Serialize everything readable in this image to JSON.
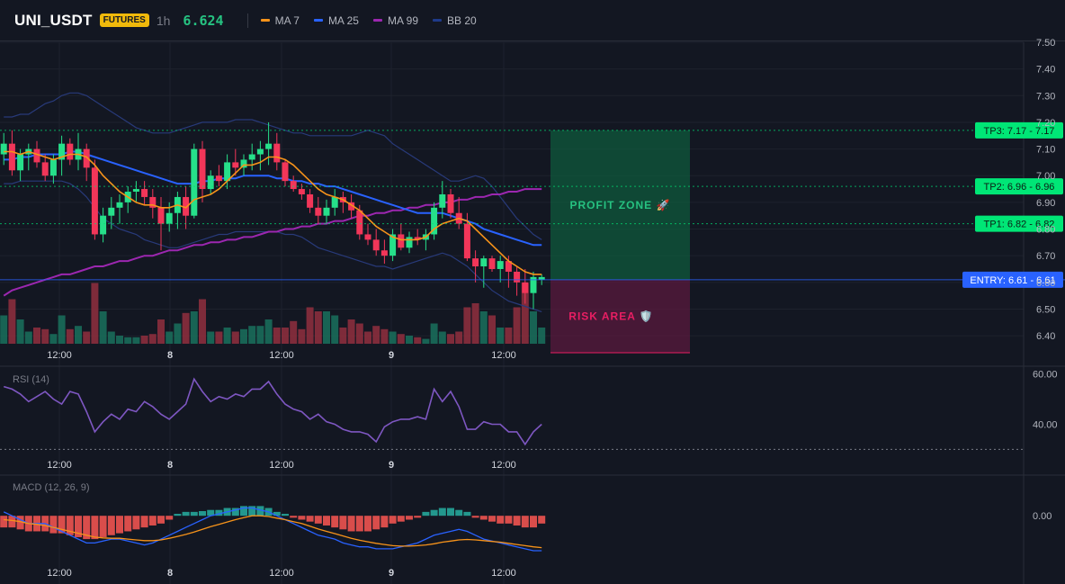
{
  "header": {
    "symbol": "UNI_USDT",
    "market_badge": "FUTURES",
    "timeframe": "1h",
    "last_price": "6.624",
    "legend": [
      {
        "label": "MA 7",
        "color": "#f7931a"
      },
      {
        "label": "MA 25",
        "color": "#2962ff"
      },
      {
        "label": "MA 99",
        "color": "#9c27b0"
      },
      {
        "label": "BB 20",
        "color": "#1e3a8a"
      }
    ]
  },
  "price_axis": {
    "ticks": [
      "7.50",
      "7.40",
      "7.30",
      "7.20",
      "7.10",
      "7.00",
      "6.90",
      "6.80",
      "6.70",
      "6.60",
      "6.50",
      "6.40"
    ],
    "range": [
      6.37,
      7.5
    ]
  },
  "levels": [
    {
      "name": "tp3",
      "label": "TP3: 7.17",
      "value_label": "7.17",
      "value": 7.17,
      "color": "#00e676"
    },
    {
      "name": "tp2",
      "label": "TP2: 6.96",
      "value_label": "6.96",
      "value": 6.96,
      "color": "#00e676"
    },
    {
      "name": "tp1",
      "label": "TP1: 6.82",
      "value_label": "6.82",
      "value": 6.82,
      "color": "#00e676"
    },
    {
      "name": "entry",
      "label": "ENTRY: 6.61",
      "value_label": "6.61",
      "value": 6.61,
      "color": "#2962ff"
    }
  ],
  "zones": {
    "profit_label": "PROFIT ZONE 🚀",
    "risk_label": "RISK AREA 🛡️",
    "profit_top": 7.17,
    "risk_bottom": 6.37
  },
  "time_axis": [
    "12:00",
    "8",
    "12:00",
    "9",
    "12:00"
  ],
  "rsi": {
    "label": "RSI (14)",
    "ticks": [
      "60.00",
      "40.00"
    ],
    "range": [
      28,
      62
    ],
    "values": [
      55,
      54,
      52,
      49,
      51,
      53,
      50,
      48,
      53,
      52,
      45,
      37,
      41,
      44,
      42,
      46,
      45,
      49,
      47,
      44,
      42,
      45,
      48,
      58,
      53,
      49,
      51,
      50,
      52,
      51,
      54,
      54,
      57,
      52,
      48,
      46,
      45,
      42,
      44,
      41,
      40,
      38,
      37,
      37,
      36,
      33,
      39,
      41,
      42,
      42,
      43,
      42,
      54,
      49,
      53,
      47,
      38,
      38,
      41,
      40,
      40,
      37,
      37,
      32,
      37,
      40
    ]
  },
  "macd": {
    "label": "MACD (12, 26, 9)",
    "ticks": [
      "0.00"
    ],
    "range": [
      -0.12,
      0.1
    ],
    "hist": [
      -0.03,
      -0.03,
      -0.035,
      -0.04,
      -0.04,
      -0.04,
      -0.045,
      -0.045,
      -0.05,
      -0.055,
      -0.06,
      -0.06,
      -0.055,
      -0.05,
      -0.045,
      -0.04,
      -0.035,
      -0.03,
      -0.025,
      -0.02,
      -0.01,
      0.005,
      0.01,
      0.01,
      0.012,
      0.015,
      0.015,
      0.02,
      0.02,
      0.025,
      0.025,
      0.025,
      0.02,
      0.01,
      0.005,
      -0.005,
      -0.01,
      -0.015,
      -0.02,
      -0.025,
      -0.03,
      -0.035,
      -0.04,
      -0.04,
      -0.04,
      -0.035,
      -0.03,
      -0.02,
      -0.015,
      -0.01,
      -0.005,
      0.01,
      0.015,
      0.02,
      0.02,
      0.015,
      0.01,
      -0.005,
      -0.01,
      -0.015,
      -0.02,
      -0.02,
      -0.025,
      -0.03,
      -0.03,
      -0.02
    ],
    "macd_line": [
      0.01,
      0.0,
      -0.01,
      -0.02,
      -0.02,
      -0.02,
      -0.03,
      -0.04,
      -0.05,
      -0.06,
      -0.07,
      -0.07,
      -0.065,
      -0.06,
      -0.06,
      -0.065,
      -0.07,
      -0.075,
      -0.07,
      -0.06,
      -0.05,
      -0.04,
      -0.03,
      -0.02,
      -0.01,
      0.0,
      0.005,
      0.01,
      0.015,
      0.02,
      0.02,
      0.015,
      0.01,
      0.0,
      -0.01,
      -0.02,
      -0.03,
      -0.04,
      -0.05,
      -0.055,
      -0.06,
      -0.07,
      -0.075,
      -0.08,
      -0.08,
      -0.085,
      -0.085,
      -0.085,
      -0.08,
      -0.075,
      -0.07,
      -0.06,
      -0.05,
      -0.045,
      -0.04,
      -0.035,
      -0.04,
      -0.05,
      -0.06,
      -0.065,
      -0.07,
      -0.075,
      -0.08,
      -0.085,
      -0.09,
      -0.09
    ],
    "signal_line": [
      -0.01,
      -0.012,
      -0.015,
      -0.02,
      -0.022,
      -0.025,
      -0.03,
      -0.035,
      -0.04,
      -0.045,
      -0.05,
      -0.055,
      -0.057,
      -0.058,
      -0.058,
      -0.06,
      -0.062,
      -0.064,
      -0.064,
      -0.062,
      -0.058,
      -0.053,
      -0.048,
      -0.042,
      -0.035,
      -0.028,
      -0.022,
      -0.016,
      -0.01,
      -0.005,
      0.0,
      0.0,
      -0.002,
      -0.006,
      -0.01,
      -0.015,
      -0.02,
      -0.027,
      -0.034,
      -0.04,
      -0.046,
      -0.052,
      -0.058,
      -0.063,
      -0.067,
      -0.071,
      -0.074,
      -0.077,
      -0.078,
      -0.078,
      -0.077,
      -0.075,
      -0.072,
      -0.068,
      -0.065,
      -0.062,
      -0.061,
      -0.062,
      -0.064,
      -0.066,
      -0.068,
      -0.071,
      -0.074,
      -0.077,
      -0.08,
      -0.082
    ]
  },
  "chart_data": {
    "type": "candlestick",
    "series_order": [
      "open",
      "high",
      "low",
      "close",
      "volume"
    ],
    "candles": [
      [
        7.08,
        7.16,
        7.04,
        7.12,
        0.35
      ],
      [
        7.12,
        7.17,
        7.0,
        7.02,
        0.55
      ],
      [
        7.02,
        7.1,
        6.98,
        7.08,
        0.3
      ],
      [
        7.08,
        7.12,
        7.02,
        7.1,
        0.15
      ],
      [
        7.1,
        7.13,
        7.03,
        7.05,
        0.2
      ],
      [
        7.05,
        7.08,
        6.98,
        7.0,
        0.18
      ],
      [
        7.0,
        7.08,
        6.97,
        7.06,
        0.12
      ],
      [
        7.06,
        7.15,
        7.0,
        7.12,
        0.35
      ],
      [
        7.12,
        7.14,
        7.04,
        7.06,
        0.18
      ],
      [
        7.06,
        7.16,
        7.02,
        7.1,
        0.22
      ],
      [
        7.1,
        7.12,
        6.98,
        7.03,
        0.15
      ],
      [
        7.03,
        7.06,
        6.76,
        6.78,
        0.75
      ],
      [
        6.78,
        6.88,
        6.75,
        6.85,
        0.4
      ],
      [
        6.85,
        6.92,
        6.8,
        6.88,
        0.15
      ],
      [
        6.88,
        6.93,
        6.82,
        6.9,
        0.1
      ],
      [
        6.9,
        6.96,
        6.86,
        6.94,
        0.08
      ],
      [
        6.94,
        6.98,
        6.9,
        6.95,
        0.08
      ],
      [
        6.95,
        6.98,
        6.89,
        6.92,
        0.1
      ],
      [
        6.92,
        6.95,
        6.84,
        6.88,
        0.12
      ],
      [
        6.88,
        6.92,
        6.72,
        6.82,
        0.3
      ],
      [
        6.82,
        6.9,
        6.79,
        6.86,
        0.15
      ],
      [
        6.86,
        6.94,
        6.8,
        6.92,
        0.25
      ],
      [
        6.92,
        6.96,
        6.8,
        6.85,
        0.38
      ],
      [
        6.85,
        7.12,
        6.84,
        7.1,
        0.4
      ],
      [
        7.1,
        7.13,
        6.9,
        6.95,
        0.55
      ],
      [
        6.95,
        7.02,
        6.93,
        7.0,
        0.15
      ],
      [
        7.0,
        7.04,
        6.96,
        6.98,
        0.15
      ],
      [
        6.98,
        7.08,
        6.95,
        7.05,
        0.2
      ],
      [
        7.05,
        7.1,
        7.0,
        7.03,
        0.15
      ],
      [
        7.03,
        7.08,
        7.0,
        7.06,
        0.18
      ],
      [
        7.06,
        7.12,
        7.02,
        7.08,
        0.22
      ],
      [
        7.08,
        7.13,
        7.02,
        7.1,
        0.22
      ],
      [
        7.1,
        7.2,
        7.04,
        7.12,
        0.3
      ],
      [
        7.12,
        7.16,
        7.02,
        7.05,
        0.2
      ],
      [
        7.05,
        7.06,
        6.96,
        6.98,
        0.2
      ],
      [
        6.98,
        7.0,
        6.94,
        6.95,
        0.28
      ],
      [
        6.95,
        6.97,
        6.91,
        6.93,
        0.18
      ],
      [
        6.93,
        6.95,
        6.86,
        6.88,
        0.45
      ],
      [
        6.88,
        6.92,
        6.82,
        6.85,
        0.4
      ],
      [
        6.85,
        6.91,
        6.82,
        6.88,
        0.4
      ],
      [
        6.88,
        6.95,
        6.85,
        6.92,
        0.35
      ],
      [
        6.92,
        6.94,
        6.86,
        6.9,
        0.2
      ],
      [
        6.9,
        6.93,
        6.84,
        6.87,
        0.3
      ],
      [
        6.87,
        6.89,
        6.76,
        6.78,
        0.25
      ],
      [
        6.78,
        6.82,
        6.74,
        6.76,
        0.15
      ],
      [
        6.76,
        6.8,
        6.7,
        6.72,
        0.22
      ],
      [
        6.72,
        6.76,
        6.67,
        6.7,
        0.18
      ],
      [
        6.7,
        6.8,
        6.68,
        6.78,
        0.15
      ],
      [
        6.78,
        6.82,
        6.72,
        6.73,
        0.12
      ],
      [
        6.73,
        6.79,
        6.71,
        6.77,
        0.1
      ],
      [
        6.77,
        6.8,
        6.74,
        6.76,
        0.08
      ],
      [
        6.76,
        6.8,
        6.72,
        6.78,
        0.06
      ],
      [
        6.78,
        6.9,
        6.76,
        6.88,
        0.25
      ],
      [
        6.88,
        6.98,
        6.84,
        6.93,
        0.15
      ],
      [
        6.93,
        6.95,
        6.84,
        6.86,
        0.12
      ],
      [
        6.86,
        6.92,
        6.8,
        6.82,
        0.15
      ],
      [
        6.82,
        6.86,
        6.68,
        6.69,
        0.45
      ],
      [
        6.69,
        6.72,
        6.6,
        6.66,
        0.5
      ],
      [
        6.66,
        6.7,
        6.58,
        6.69,
        0.4
      ],
      [
        6.69,
        6.7,
        6.64,
        6.65,
        0.35
      ],
      [
        6.65,
        6.7,
        6.6,
        6.68,
        0.2
      ],
      [
        6.68,
        6.7,
        6.58,
        6.64,
        0.2
      ],
      [
        6.64,
        6.66,
        6.55,
        6.6,
        0.45
      ],
      [
        6.6,
        6.65,
        6.52,
        6.56,
        0.75
      ],
      [
        6.56,
        6.64,
        6.5,
        6.62,
        0.4
      ],
      [
        6.61,
        6.63,
        6.59,
        6.62,
        0.2
      ]
    ],
    "ma7": [
      7.09,
      7.09,
      7.08,
      7.09,
      7.08,
      7.07,
      7.06,
      7.07,
      7.08,
      7.08,
      7.07,
      7.04,
      7.0,
      6.97,
      6.94,
      6.92,
      6.9,
      6.89,
      6.89,
      6.88,
      6.88,
      6.89,
      6.88,
      6.91,
      6.92,
      6.93,
      6.95,
      6.98,
      7.01,
      7.04,
      7.04,
      7.05,
      7.07,
      7.07,
      7.06,
      7.04,
      7.01,
      6.98,
      6.95,
      6.93,
      6.92,
      6.91,
      6.89,
      6.87,
      6.84,
      6.81,
      6.79,
      6.77,
      6.76,
      6.76,
      6.76,
      6.77,
      6.8,
      6.82,
      6.83,
      6.84,
      6.83,
      6.8,
      6.77,
      6.74,
      6.71,
      6.68,
      6.66,
      6.64,
      6.63,
      6.63
    ],
    "ma25": [
      7.06,
      7.06,
      7.07,
      7.07,
      7.08,
      7.08,
      7.08,
      7.08,
      7.09,
      7.09,
      7.08,
      7.07,
      7.06,
      7.05,
      7.04,
      7.03,
      7.02,
      7.01,
      7.0,
      6.99,
      6.98,
      6.97,
      6.97,
      6.97,
      6.98,
      6.98,
      6.99,
      6.99,
      6.99,
      7.0,
      7.0,
      7.0,
      7.0,
      6.99,
      6.99,
      6.98,
      6.98,
      6.97,
      6.97,
      6.96,
      6.96,
      6.95,
      6.94,
      6.93,
      6.92,
      6.91,
      6.9,
      6.89,
      6.88,
      6.87,
      6.86,
      6.86,
      6.86,
      6.86,
      6.85,
      6.84,
      6.83,
      6.82,
      6.8,
      6.79,
      6.78,
      6.77,
      6.76,
      6.75,
      6.74,
      6.74
    ],
    "ma99": [
      6.55,
      6.57,
      6.58,
      6.59,
      6.6,
      6.61,
      6.62,
      6.63,
      6.63,
      6.64,
      6.65,
      6.66,
      6.66,
      6.67,
      6.68,
      6.68,
      6.69,
      6.7,
      6.7,
      6.71,
      6.72,
      6.72,
      6.73,
      6.74,
      6.74,
      6.75,
      6.75,
      6.76,
      6.76,
      6.77,
      6.77,
      6.78,
      6.79,
      6.79,
      6.8,
      6.8,
      6.81,
      6.81,
      6.82,
      6.82,
      6.83,
      6.83,
      6.84,
      6.85,
      6.85,
      6.86,
      6.86,
      6.87,
      6.87,
      6.88,
      6.88,
      6.89,
      6.89,
      6.9,
      6.9,
      6.91,
      6.91,
      6.92,
      6.92,
      6.93,
      6.93,
      6.94,
      6.94,
      6.95,
      6.95,
      6.95
    ],
    "bb_upper": [
      7.22,
      7.22,
      7.23,
      7.23,
      7.25,
      7.27,
      7.28,
      7.3,
      7.31,
      7.31,
      7.3,
      7.28,
      7.26,
      7.24,
      7.22,
      7.2,
      7.18,
      7.17,
      7.16,
      7.16,
      7.16,
      7.17,
      7.18,
      7.19,
      7.2,
      7.2,
      7.2,
      7.2,
      7.21,
      7.21,
      7.21,
      7.2,
      7.19,
      7.18,
      7.17,
      7.16,
      7.16,
      7.15,
      7.15,
      7.15,
      7.15,
      7.15,
      7.15,
      7.16,
      7.17,
      7.16,
      7.15,
      7.12,
      7.1,
      7.08,
      7.06,
      7.04,
      7.02,
      7.0,
      6.98,
      6.98,
      6.99,
      7.0,
      6.99,
      6.96,
      6.92,
      6.88,
      6.84,
      6.81,
      6.78,
      6.76
    ],
    "bb_lower": [
      6.97,
      6.97,
      6.98,
      6.98,
      6.98,
      6.98,
      6.98,
      6.98,
      6.97,
      6.95,
      6.92,
      6.88,
      6.84,
      6.82,
      6.8,
      6.79,
      6.78,
      6.76,
      6.75,
      6.74,
      6.73,
      6.73,
      6.74,
      6.75,
      6.76,
      6.77,
      6.78,
      6.78,
      6.79,
      6.79,
      6.79,
      6.79,
      6.79,
      6.79,
      6.78,
      6.78,
      6.77,
      6.75,
      6.73,
      6.72,
      6.71,
      6.7,
      6.69,
      6.68,
      6.67,
      6.66,
      6.66,
      6.65,
      6.66,
      6.67,
      6.68,
      6.69,
      6.7,
      6.71,
      6.7,
      6.68,
      6.66,
      6.63,
      6.6,
      6.57,
      6.55,
      6.53,
      6.52,
      6.51,
      6.5,
      6.49
    ]
  }
}
